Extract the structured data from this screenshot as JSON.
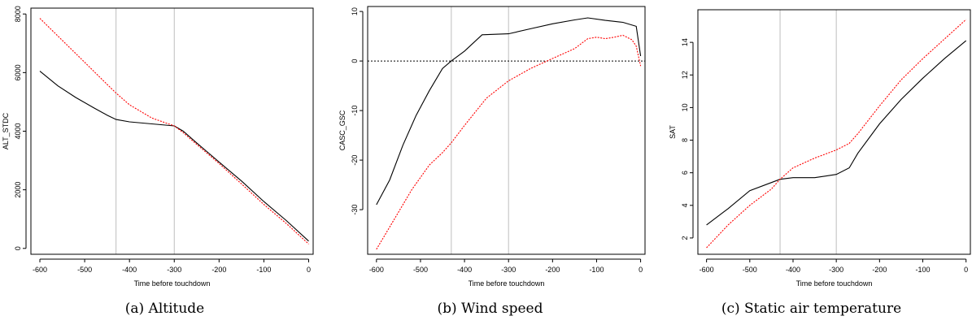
{
  "chart_data": [
    {
      "type": "line",
      "caption": "(a) Altitude",
      "xlabel": "Time before touchdown",
      "ylabel": "ALT_STDC",
      "xlim": [
        -620,
        10
      ],
      "ylim": [
        -200,
        8200
      ],
      "xticks": [
        -600,
        -500,
        -400,
        -300,
        -200,
        -100,
        0
      ],
      "yticks": [
        0,
        2000,
        4000,
        6000,
        8000
      ],
      "vlines": [
        -430,
        -300
      ],
      "hline": null,
      "grid": false,
      "colors": {
        "series1": "#000000",
        "series2": "#ff0000",
        "vline": "#bebebe"
      },
      "series": [
        {
          "style": "solid",
          "x": [
            -600,
            -560,
            -520,
            -480,
            -450,
            -430,
            -400,
            -350,
            -300,
            -280,
            -250,
            -200,
            -150,
            -100,
            -50,
            0
          ],
          "y": [
            6050,
            5550,
            5150,
            4800,
            4550,
            4400,
            4320,
            4250,
            4180,
            4000,
            3600,
            2950,
            2300,
            1600,
            950,
            250
          ]
        },
        {
          "style": "dotted",
          "x": [
            -600,
            -550,
            -500,
            -450,
            -430,
            -400,
            -350,
            -300,
            -280,
            -250,
            -200,
            -150,
            -100,
            -50,
            0
          ],
          "y": [
            7850,
            7100,
            6350,
            5600,
            5300,
            4900,
            4450,
            4180,
            3950,
            3550,
            2900,
            2200,
            1500,
            850,
            150
          ]
        }
      ]
    },
    {
      "type": "line",
      "caption": "(b) Wind speed",
      "xlabel": "Time before touchdown",
      "ylabel": "CASC_GSC",
      "xlim": [
        -620,
        10
      ],
      "ylim": [
        -39,
        11
      ],
      "xticks": [
        -600,
        -500,
        -400,
        -300,
        -200,
        -100,
        0
      ],
      "yticks": [
        -30,
        -20,
        -10,
        0,
        10
      ],
      "vlines": [
        -430,
        -300
      ],
      "hline": 0,
      "grid": false,
      "colors": {
        "series1": "#000000",
        "series2": "#ff0000",
        "vline": "#bebebe",
        "hline": "#000000"
      },
      "series": [
        {
          "style": "solid",
          "x": [
            -600,
            -570,
            -540,
            -510,
            -480,
            -450,
            -430,
            -400,
            -360,
            -300,
            -250,
            -200,
            -150,
            -120,
            -80,
            -40,
            -10,
            0
          ],
          "y": [
            -29,
            -24,
            -17,
            -11,
            -6,
            -1.5,
            0,
            2,
            5.3,
            5.5,
            6.5,
            7.5,
            8.3,
            8.7,
            8.2,
            7.8,
            7,
            1
          ]
        },
        {
          "style": "dotted",
          "x": [
            -600,
            -560,
            -520,
            -480,
            -450,
            -430,
            -400,
            -350,
            -300,
            -250,
            -200,
            -150,
            -120,
            -100,
            -80,
            -60,
            -40,
            -20,
            -10,
            0
          ],
          "y": [
            -38,
            -32,
            -26,
            -21,
            -18.5,
            -16.5,
            -13,
            -7.5,
            -4,
            -1.5,
            0.5,
            2.5,
            4.5,
            4.8,
            4.5,
            4.8,
            5.2,
            4.3,
            3,
            -1
          ]
        }
      ]
    },
    {
      "type": "line",
      "caption": "(c) Static air temperature",
      "xlabel": "Time before touchdown",
      "ylabel": "SAT",
      "xlim": [
        -620,
        10
      ],
      "ylim": [
        1,
        16
      ],
      "xticks": [
        -600,
        -500,
        -400,
        -300,
        -200,
        -100,
        0
      ],
      "yticks": [
        2,
        4,
        6,
        8,
        10,
        12,
        14
      ],
      "vlines": [
        -430,
        -300
      ],
      "hline": null,
      "grid": false,
      "colors": {
        "series1": "#000000",
        "series2": "#ff0000",
        "vline": "#bebebe"
      },
      "series": [
        {
          "style": "solid",
          "x": [
            -600,
            -550,
            -500,
            -450,
            -430,
            -400,
            -350,
            -300,
            -270,
            -250,
            -200,
            -150,
            -100,
            -50,
            0
          ],
          "y": [
            2.8,
            3.8,
            4.9,
            5.4,
            5.6,
            5.7,
            5.7,
            5.9,
            6.3,
            7.2,
            9.0,
            10.5,
            11.8,
            13.0,
            14.1
          ]
        },
        {
          "style": "dotted",
          "x": [
            -600,
            -550,
            -500,
            -450,
            -430,
            -400,
            -350,
            -300,
            -270,
            -250,
            -200,
            -150,
            -100,
            -50,
            0
          ],
          "y": [
            1.4,
            2.8,
            4.0,
            5.0,
            5.6,
            6.3,
            6.9,
            7.4,
            7.8,
            8.4,
            10.1,
            11.7,
            13.0,
            14.2,
            15.4
          ]
        }
      ]
    }
  ]
}
